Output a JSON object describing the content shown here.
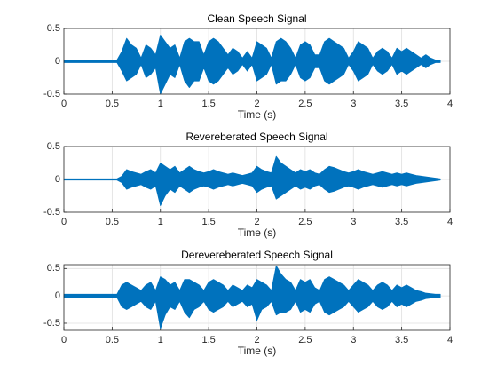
{
  "chart_data": [
    {
      "type": "area",
      "title": "Clean Speech Signal",
      "x_label": "Time (s)",
      "x": [
        0,
        0.05,
        0.1,
        0.15,
        0.2,
        0.25,
        0.3,
        0.35,
        0.4,
        0.45,
        0.5,
        0.55,
        0.6,
        0.65,
        0.7,
        0.75,
        0.8,
        0.85,
        0.9,
        0.95,
        1,
        1.05,
        1.1,
        1.15,
        1.2,
        1.25,
        1.3,
        1.35,
        1.4,
        1.45,
        1.5,
        1.55,
        1.6,
        1.65,
        1.7,
        1.75,
        1.8,
        1.85,
        1.9,
        1.95,
        2,
        2.05,
        2.1,
        2.15,
        2.2,
        2.25,
        2.3,
        2.35,
        2.4,
        2.45,
        2.5,
        2.55,
        2.6,
        2.65,
        2.7,
        2.75,
        2.8,
        2.85,
        2.9,
        2.95,
        3,
        3.05,
        3.1,
        3.15,
        3.2,
        3.25,
        3.3,
        3.35,
        3.4,
        3.45,
        3.5,
        3.55,
        3.6,
        3.65,
        3.7,
        3.75,
        3.8,
        3.85,
        3.9
      ],
      "series": [
        {
          "color": "#0072bd",
          "values": [
            0.02,
            0.02,
            0.02,
            0.02,
            0.02,
            0.02,
            0.02,
            0.02,
            0.02,
            0.02,
            0.02,
            0.02,
            0.15,
            0.35,
            0.25,
            0.2,
            0.05,
            0.25,
            0.2,
            0.1,
            0.4,
            0.3,
            0.2,
            0.25,
            0.05,
            0.3,
            0.35,
            0.3,
            0.3,
            0.1,
            0.3,
            0.35,
            0.3,
            0.2,
            0.1,
            0.2,
            0.15,
            0.05,
            0.15,
            0.05,
            0.3,
            0.25,
            0.2,
            0.05,
            0.3,
            0.35,
            0.3,
            0.2,
            0.05,
            0.25,
            0.3,
            0.25,
            0.1,
            0.1,
            0.3,
            0.35,
            0.3,
            0.25,
            0.2,
            0.05,
            0.15,
            0.3,
            0.25,
            0.2,
            0.05,
            0.15,
            0.2,
            0.15,
            0.05,
            0.2,
            0.15,
            0.2,
            0.15,
            0.1,
            0.05,
            0.1,
            0.05,
            0.02,
            0.02
          ]
        },
        {
          "color": "#0072bd",
          "values": [
            -0.02,
            -0.02,
            -0.02,
            -0.02,
            -0.02,
            -0.02,
            -0.02,
            -0.02,
            -0.02,
            -0.02,
            -0.02,
            -0.02,
            -0.15,
            -0.3,
            -0.25,
            -0.2,
            -0.05,
            -0.25,
            -0.2,
            -0.1,
            -0.5,
            -0.35,
            -0.2,
            -0.25,
            -0.05,
            -0.3,
            -0.4,
            -0.3,
            -0.3,
            -0.1,
            -0.3,
            -0.35,
            -0.3,
            -0.2,
            -0.1,
            -0.2,
            -0.15,
            -0.05,
            -0.15,
            -0.05,
            -0.3,
            -0.25,
            -0.2,
            -0.05,
            -0.35,
            -0.3,
            -0.3,
            -0.2,
            -0.05,
            -0.25,
            -0.3,
            -0.25,
            -0.1,
            -0.1,
            -0.3,
            -0.35,
            -0.3,
            -0.25,
            -0.2,
            -0.05,
            -0.15,
            -0.3,
            -0.25,
            -0.2,
            -0.05,
            -0.15,
            -0.2,
            -0.15,
            -0.05,
            -0.2,
            -0.15,
            -0.2,
            -0.15,
            -0.1,
            -0.05,
            -0.1,
            -0.05,
            -0.02,
            -0.02
          ]
        }
      ],
      "xlim": [
        0,
        4
      ],
      "xticks": [
        0,
        0.5,
        1,
        1.5,
        2,
        2.5,
        3,
        3.5,
        4
      ],
      "ylim": [
        -0.5,
        0.5
      ],
      "yticks": [
        -0.5,
        0,
        0.5
      ],
      "grid": true
    },
    {
      "type": "area",
      "title": "Revereberated Speech Signal",
      "x_label": "Time (s)",
      "x": [
        0,
        0.05,
        0.1,
        0.15,
        0.2,
        0.25,
        0.3,
        0.35,
        0.4,
        0.45,
        0.5,
        0.55,
        0.6,
        0.65,
        0.7,
        0.75,
        0.8,
        0.85,
        0.9,
        0.95,
        1,
        1.05,
        1.1,
        1.15,
        1.2,
        1.25,
        1.3,
        1.35,
        1.4,
        1.45,
        1.5,
        1.55,
        1.6,
        1.65,
        1.7,
        1.75,
        1.8,
        1.85,
        1.9,
        1.95,
        2,
        2.05,
        2.1,
        2.15,
        2.2,
        2.25,
        2.3,
        2.35,
        2.4,
        2.45,
        2.5,
        2.55,
        2.6,
        2.65,
        2.7,
        2.75,
        2.8,
        2.85,
        2.9,
        2.95,
        3,
        3.05,
        3.1,
        3.15,
        3.2,
        3.25,
        3.3,
        3.35,
        3.4,
        3.45,
        3.5,
        3.55,
        3.6,
        3.65,
        3.7,
        3.75,
        3.8,
        3.85,
        3.9
      ],
      "series": [
        {
          "color": "#0072bd",
          "values": [
            0.01,
            0.01,
            0.01,
            0.01,
            0.01,
            0.01,
            0.01,
            0.01,
            0.01,
            0.01,
            0.01,
            0.01,
            0.05,
            0.15,
            0.12,
            0.1,
            0.08,
            0.12,
            0.15,
            0.1,
            0.25,
            0.2,
            0.15,
            0.2,
            0.1,
            0.15,
            0.2,
            0.15,
            0.12,
            0.1,
            0.12,
            0.15,
            0.12,
            0.1,
            0.08,
            0.1,
            0.08,
            0.06,
            0.08,
            0.1,
            0.2,
            0.15,
            0.12,
            0.1,
            0.35,
            0.25,
            0.2,
            0.15,
            0.1,
            0.15,
            0.12,
            0.15,
            0.1,
            0.08,
            0.15,
            0.2,
            0.18,
            0.15,
            0.12,
            0.1,
            0.12,
            0.15,
            0.12,
            0.1,
            0.08,
            0.1,
            0.12,
            0.1,
            0.08,
            0.1,
            0.08,
            0.1,
            0.08,
            0.06,
            0.05,
            0.04,
            0.03,
            0.02,
            0.01
          ]
        },
        {
          "color": "#0072bd",
          "values": [
            -0.01,
            -0.01,
            -0.01,
            -0.01,
            -0.01,
            -0.01,
            -0.01,
            -0.01,
            -0.01,
            -0.01,
            -0.01,
            -0.01,
            -0.05,
            -0.15,
            -0.12,
            -0.1,
            -0.08,
            -0.12,
            -0.15,
            -0.1,
            -0.4,
            -0.25,
            -0.15,
            -0.2,
            -0.1,
            -0.15,
            -0.2,
            -0.15,
            -0.12,
            -0.1,
            -0.12,
            -0.15,
            -0.12,
            -0.1,
            -0.08,
            -0.1,
            -0.08,
            -0.06,
            -0.08,
            -0.1,
            -0.2,
            -0.15,
            -0.12,
            -0.1,
            -0.3,
            -0.25,
            -0.2,
            -0.15,
            -0.1,
            -0.15,
            -0.12,
            -0.15,
            -0.1,
            -0.08,
            -0.15,
            -0.2,
            -0.18,
            -0.15,
            -0.12,
            -0.1,
            -0.12,
            -0.15,
            -0.12,
            -0.1,
            -0.08,
            -0.1,
            -0.12,
            -0.1,
            -0.08,
            -0.1,
            -0.08,
            -0.1,
            -0.08,
            -0.06,
            -0.05,
            -0.04,
            -0.03,
            -0.02,
            -0.01
          ]
        }
      ],
      "xlim": [
        0,
        4
      ],
      "xticks": [
        0,
        0.5,
        1,
        1.5,
        2,
        2.5,
        3,
        3.5,
        4
      ],
      "ylim": [
        -0.5,
        0.5
      ],
      "yticks": [
        -0.5,
        0,
        0.5
      ],
      "grid": true
    },
    {
      "type": "area",
      "title": "Derevereberated Speech Signal",
      "x_label": "Time (s)",
      "x": [
        0,
        0.05,
        0.1,
        0.15,
        0.2,
        0.25,
        0.3,
        0.35,
        0.4,
        0.45,
        0.5,
        0.55,
        0.6,
        0.65,
        0.7,
        0.75,
        0.8,
        0.85,
        0.9,
        0.95,
        1,
        1.05,
        1.1,
        1.15,
        1.2,
        1.25,
        1.3,
        1.35,
        1.4,
        1.45,
        1.5,
        1.55,
        1.6,
        1.65,
        1.7,
        1.75,
        1.8,
        1.85,
        1.9,
        1.95,
        2,
        2.05,
        2.1,
        2.15,
        2.2,
        2.25,
        2.3,
        2.35,
        2.4,
        2.45,
        2.5,
        2.55,
        2.6,
        2.65,
        2.7,
        2.75,
        2.8,
        2.85,
        2.9,
        2.95,
        3,
        3.05,
        3.1,
        3.15,
        3.2,
        3.25,
        3.3,
        3.35,
        3.4,
        3.45,
        3.5,
        3.55,
        3.6,
        3.65,
        3.7,
        3.75,
        3.8,
        3.85,
        3.9
      ],
      "series": [
        {
          "color": "#0072bd",
          "values": [
            0.03,
            0.03,
            0.03,
            0.03,
            0.03,
            0.03,
            0.03,
            0.03,
            0.03,
            0.03,
            0.03,
            0.03,
            0.2,
            0.25,
            0.2,
            0.15,
            0.1,
            0.2,
            0.25,
            0.1,
            0.35,
            0.3,
            0.2,
            0.25,
            0.1,
            0.3,
            0.3,
            0.25,
            0.2,
            0.1,
            0.25,
            0.3,
            0.25,
            0.2,
            0.1,
            0.2,
            0.15,
            0.1,
            0.2,
            0.15,
            0.3,
            0.25,
            0.2,
            0.1,
            0.55,
            0.4,
            0.3,
            0.25,
            0.1,
            0.3,
            0.25,
            0.3,
            0.15,
            0.1,
            0.3,
            0.35,
            0.3,
            0.25,
            0.2,
            0.1,
            0.2,
            0.3,
            0.25,
            0.2,
            0.1,
            0.2,
            0.25,
            0.2,
            0.1,
            0.2,
            0.15,
            0.2,
            0.15,
            0.1,
            0.08,
            0.05,
            0.04,
            0.03,
            0.03
          ]
        },
        {
          "color": "#0072bd",
          "values": [
            -0.03,
            -0.03,
            -0.03,
            -0.03,
            -0.03,
            -0.03,
            -0.03,
            -0.03,
            -0.03,
            -0.03,
            -0.03,
            -0.03,
            -0.2,
            -0.25,
            -0.2,
            -0.15,
            -0.1,
            -0.2,
            -0.25,
            -0.1,
            -0.6,
            -0.35,
            -0.2,
            -0.25,
            -0.1,
            -0.3,
            -0.4,
            -0.25,
            -0.2,
            -0.1,
            -0.25,
            -0.3,
            -0.25,
            -0.2,
            -0.1,
            -0.2,
            -0.15,
            -0.1,
            -0.2,
            -0.15,
            -0.45,
            -0.25,
            -0.2,
            -0.1,
            -0.35,
            -0.3,
            -0.3,
            -0.25,
            -0.1,
            -0.3,
            -0.25,
            -0.3,
            -0.15,
            -0.1,
            -0.3,
            -0.35,
            -0.3,
            -0.25,
            -0.2,
            -0.1,
            -0.2,
            -0.3,
            -0.25,
            -0.2,
            -0.1,
            -0.2,
            -0.25,
            -0.2,
            -0.1,
            -0.2,
            -0.15,
            -0.2,
            -0.15,
            -0.1,
            -0.08,
            -0.05,
            -0.04,
            -0.03,
            -0.03
          ]
        }
      ],
      "xlim": [
        0,
        4
      ],
      "xticks": [
        0,
        0.5,
        1,
        1.5,
        2,
        2.5,
        3,
        3.5,
        4
      ],
      "ylim": [
        -0.63,
        0.57
      ],
      "yticks": [
        -0.5,
        0,
        0.5
      ],
      "grid": true
    }
  ]
}
